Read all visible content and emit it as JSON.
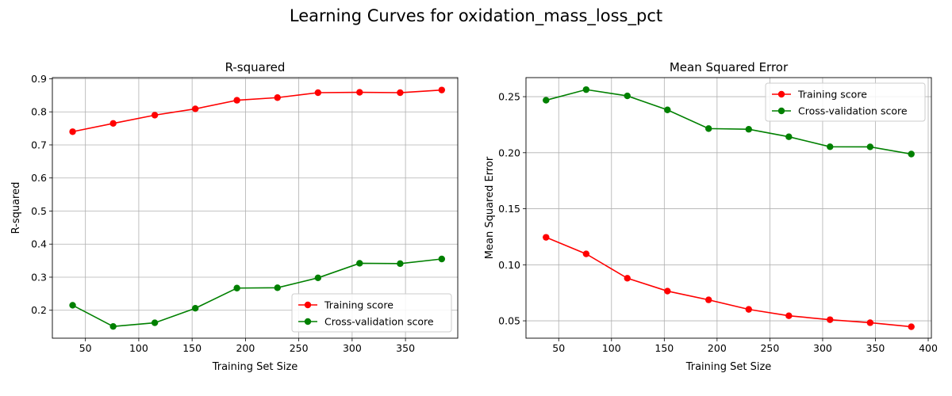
{
  "suptitle": "Learning Curves for oxidation_mass_loss_pct",
  "colors": {
    "training": "#ff0000",
    "cv": "#008000",
    "grid": "#b0b0b0"
  },
  "chart_data": [
    {
      "type": "line",
      "title": "R-squared",
      "xlabel": "Training Set Size",
      "ylabel": "R-squared",
      "xlim": [
        19,
        399
      ],
      "ylim": [
        0.1155,
        0.9035
      ],
      "xticks": [
        50,
        100,
        150,
        200,
        250,
        300,
        350,
        400
      ],
      "yticks": [
        0.2,
        0.3,
        0.4,
        0.5,
        0.6,
        0.7,
        0.8,
        0.9
      ],
      "grid": true,
      "legend_position": "lower-right",
      "x": [
        38,
        76,
        115,
        153,
        192,
        230,
        268,
        307,
        345,
        384
      ],
      "series": [
        {
          "name": "Training score",
          "color": "#ff0000",
          "values": [
            0.74,
            0.765,
            0.79,
            0.809,
            0.835,
            0.843,
            0.858,
            0.859,
            0.858,
            0.866
          ]
        },
        {
          "name": "Cross-validation score",
          "color": "#008000",
          "values": [
            0.215,
            0.151,
            0.162,
            0.206,
            0.267,
            0.268,
            0.298,
            0.342,
            0.341,
            0.355
          ]
        }
      ]
    },
    {
      "type": "line",
      "title": "Mean Squared Error",
      "xlabel": "Training Set Size",
      "ylabel": "Mean Squared Error",
      "xlim": [
        19,
        403
      ],
      "ylim": [
        0.0345,
        0.267
      ],
      "xticks": [
        50,
        100,
        150,
        200,
        250,
        300,
        350,
        400
      ],
      "yticks": [
        0.05,
        0.1,
        0.15,
        0.2,
        0.25
      ],
      "grid": true,
      "legend_position": "upper-right",
      "x": [
        38,
        76,
        115,
        153,
        192,
        230,
        268,
        307,
        345,
        384
      ],
      "series": [
        {
          "name": "Training score",
          "color": "#ff0000",
          "values": [
            0.1245,
            0.1097,
            0.088,
            0.0765,
            0.0687,
            0.0602,
            0.0545,
            0.051,
            0.0483,
            0.0447
          ]
        },
        {
          "name": "Cross-validation score",
          "color": "#008000",
          "values": [
            0.2468,
            0.2563,
            0.2507,
            0.2382,
            0.2215,
            0.2209,
            0.2142,
            0.2053,
            0.2052,
            0.1988
          ]
        }
      ]
    }
  ]
}
